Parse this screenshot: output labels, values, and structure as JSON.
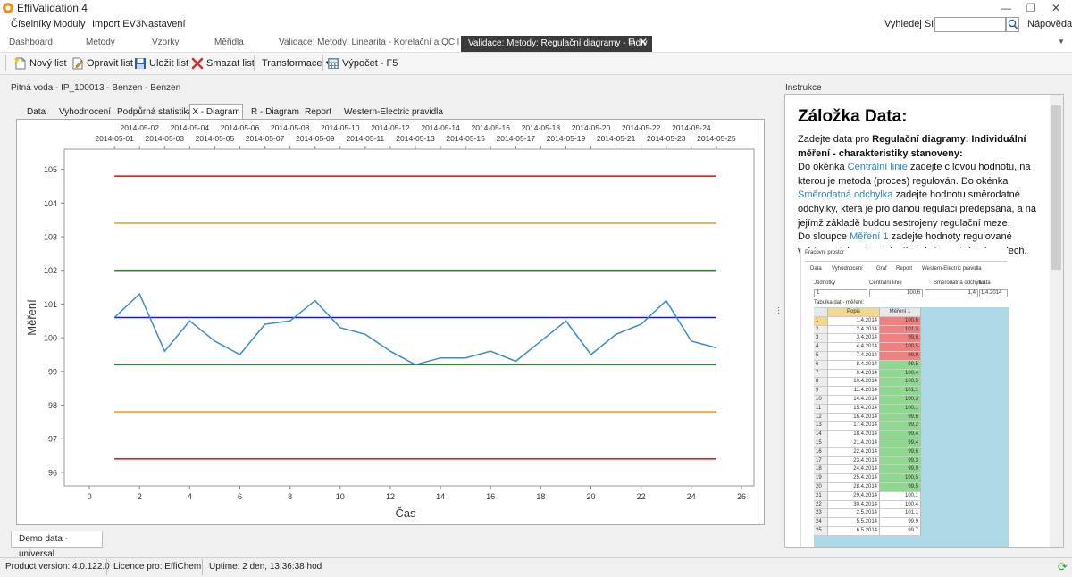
{
  "app": {
    "title": "EffiValidation 4"
  },
  "window": {
    "minimize": "—",
    "maximize": "❐",
    "close": "✕"
  },
  "menu": [
    "Číselníky",
    "Moduly",
    "Import EV3",
    "Nastavení"
  ],
  "search": {
    "label": "Vyhledej SID",
    "value": "",
    "placeholder": ""
  },
  "help": "Nápověda",
  "doc_tabs": [
    "Dashboard",
    "Metody",
    "Vzorky",
    "Měřidla",
    "Validace: Metody: Linearita - Korelační a QC l"
  ],
  "doc_tab_active": "Validace: Metody: Regulační diagramy - Indiv",
  "toolbar": {
    "new": "Nový list",
    "edit": "Opravit list",
    "save": "Uložit list",
    "delete": "Smazat list",
    "transform": "Transformace",
    "compute": "Výpočet - F5"
  },
  "left_title": "Pitná voda - IP_100013 - Benzen - Benzen",
  "sub_tabs": [
    "Data",
    "Vyhodnocení",
    "Podpůrná statistika",
    "X - Diagram",
    "R - Diagram",
    "Report",
    "Western-Electric pravidla"
  ],
  "bottom_tab": "Demo data - universal",
  "right_title": "Instrukce",
  "instructions": {
    "heading": "Záložka Data:",
    "p1_a": "Zadejte data pro ",
    "p1_b": "Regulační diagramy: Individuální měření - charakteristiky stanoveny:",
    "p2_a": "Do okénka ",
    "p2_hl1": "Centrální linie",
    "p2_b": " zadejte cílovou hodnotu, na kterou je metoda (proces) regulován. Do okénka ",
    "p2_hl2": "Směrodatná odchylka",
    "p2_c": " zadejte hodnotu směrodatné odchylky, která je pro danou regulaci předepsána, a na jejímž základě budou sestrojeny regulační meze.",
    "p3_a": "Do sloupce ",
    "p3_hl": "Měření 1",
    "p3_b": " zadejte hodnoty regulované veličiny, získané v jednotlivých časových intervalech."
  },
  "mini": {
    "title": "Pracovní prostor",
    "tabs": [
      "Data",
      "Vyhodnocení",
      "Graf",
      "Report",
      "Western-Electric pravidla"
    ],
    "labels": [
      "Jednotky",
      "Centrální linie",
      "Směrodatná odchylka",
      "Lišta"
    ],
    "values": [
      "1",
      "100,6",
      "1,4",
      "1.4.2014"
    ],
    "table_title": "Tabulka dat - měření:",
    "col_date": "Popis",
    "col_val": "Měření 1",
    "rows": [
      [
        "1",
        "1.4.2014",
        "100,6",
        "r"
      ],
      [
        "2",
        "2.4.2014",
        "101,3",
        "r"
      ],
      [
        "3",
        "3.4.2014",
        "99,6",
        "r"
      ],
      [
        "4",
        "4.4.2014",
        "100,5",
        "r"
      ],
      [
        "5",
        "7.4.2014",
        "99,9",
        "r"
      ],
      [
        "6",
        "8.4.2014",
        "99,5",
        "g"
      ],
      [
        "7",
        "9.4.2014",
        "100,4",
        "g"
      ],
      [
        "8",
        "10.4.2014",
        "100,5",
        "g"
      ],
      [
        "9",
        "11.4.2014",
        "101,1",
        "g"
      ],
      [
        "10",
        "14.4.2014",
        "100,3",
        "g"
      ],
      [
        "11",
        "15.4.2014",
        "100,1",
        "g"
      ],
      [
        "12",
        "16.4.2014",
        "99,6",
        "g"
      ],
      [
        "13",
        "17.4.2014",
        "99,2",
        "g"
      ],
      [
        "14",
        "18.4.2014",
        "99,4",
        "g"
      ],
      [
        "15",
        "21.4.2014",
        "99,4",
        "g"
      ],
      [
        "16",
        "22.4.2014",
        "99,6",
        "g"
      ],
      [
        "17",
        "23.4.2014",
        "99,3",
        "g"
      ],
      [
        "18",
        "24.4.2014",
        "99,9",
        "g"
      ],
      [
        "19",
        "25.4.2014",
        "100,5",
        "g"
      ],
      [
        "20",
        "28.4.2014",
        "99,5",
        "g"
      ],
      [
        "21",
        "29.4.2014",
        "100,1",
        "w"
      ],
      [
        "22",
        "30.4.2014",
        "100,4",
        "w"
      ],
      [
        "23",
        "2.5.2014",
        "101,1",
        "w"
      ],
      [
        "24",
        "5.5.2014",
        "99,9",
        "w"
      ],
      [
        "25",
        "6.5.2014",
        "99,7",
        "w"
      ]
    ]
  },
  "status": {
    "version": "Product version: 4.0.122.0",
    "licence": "Licence pro: EffiChem",
    "uptime": "Uptime: 2 den, 13:36:38 hod"
  },
  "colors": {
    "ucl": "#e02020",
    "warn": "#f0a020",
    "sigma": "#2a8a2a",
    "center": "#1020c0",
    "series": "#3a8ad0"
  },
  "chart_data": {
    "type": "line",
    "title": "",
    "xlabel": "Čas",
    "ylabel": "Měření",
    "xlim": [
      -1,
      26.5
    ],
    "ylim": [
      95.6,
      105.6
    ],
    "xticks": [
      0,
      2,
      4,
      6,
      8,
      10,
      12,
      14,
      16,
      18,
      20,
      22,
      24,
      26
    ],
    "yticks": [
      96,
      97,
      98,
      99,
      100,
      101,
      102,
      103,
      104,
      105
    ],
    "top_axis_row1": [
      "2014-05-02",
      "2014-05-04",
      "2014-05-06",
      "2014-05-08",
      "2014-05-10",
      "2014-05-12",
      "2014-05-14",
      "2014-05-16",
      "2014-05-18",
      "2014-05-20",
      "2014-05-22",
      "2014-05-24"
    ],
    "top_axis_row2": [
      "2014-05-01",
      "2014-05-03",
      "2014-05-05",
      "2014-05-07",
      "2014-05-09",
      "2014-05-11",
      "2014-05-13",
      "2014-05-15",
      "2014-05-17",
      "2014-05-19",
      "2014-05-21",
      "2014-05-23",
      "2014-05-25"
    ],
    "series": [
      {
        "x": [
          1,
          2,
          3,
          4,
          5,
          6,
          7,
          8,
          9,
          10,
          11,
          12,
          13,
          14,
          15,
          16,
          17,
          18,
          19,
          20,
          21,
          22,
          23,
          24,
          25
        ],
        "values": [
          100.6,
          101.3,
          99.6,
          100.5,
          99.9,
          99.5,
          100.4,
          100.5,
          101.1,
          100.3,
          100.1,
          99.6,
          99.2,
          99.4,
          99.4,
          99.6,
          99.3,
          99.9,
          100.5,
          99.5,
          100.1,
          100.4,
          101.1,
          99.9,
          99.7
        ]
      }
    ],
    "limit_lines": [
      {
        "y": 104.8,
        "color": "ucl"
      },
      {
        "y": 103.4,
        "color": "warn"
      },
      {
        "y": 102.0,
        "color": "sigma"
      },
      {
        "y": 100.6,
        "color": "center"
      },
      {
        "y": 99.2,
        "color": "sigma"
      },
      {
        "y": 97.8,
        "color": "warn"
      },
      {
        "y": 96.4,
        "color": "ucl"
      }
    ],
    "limit_xrange": [
      1,
      25
    ],
    "grid": false
  }
}
